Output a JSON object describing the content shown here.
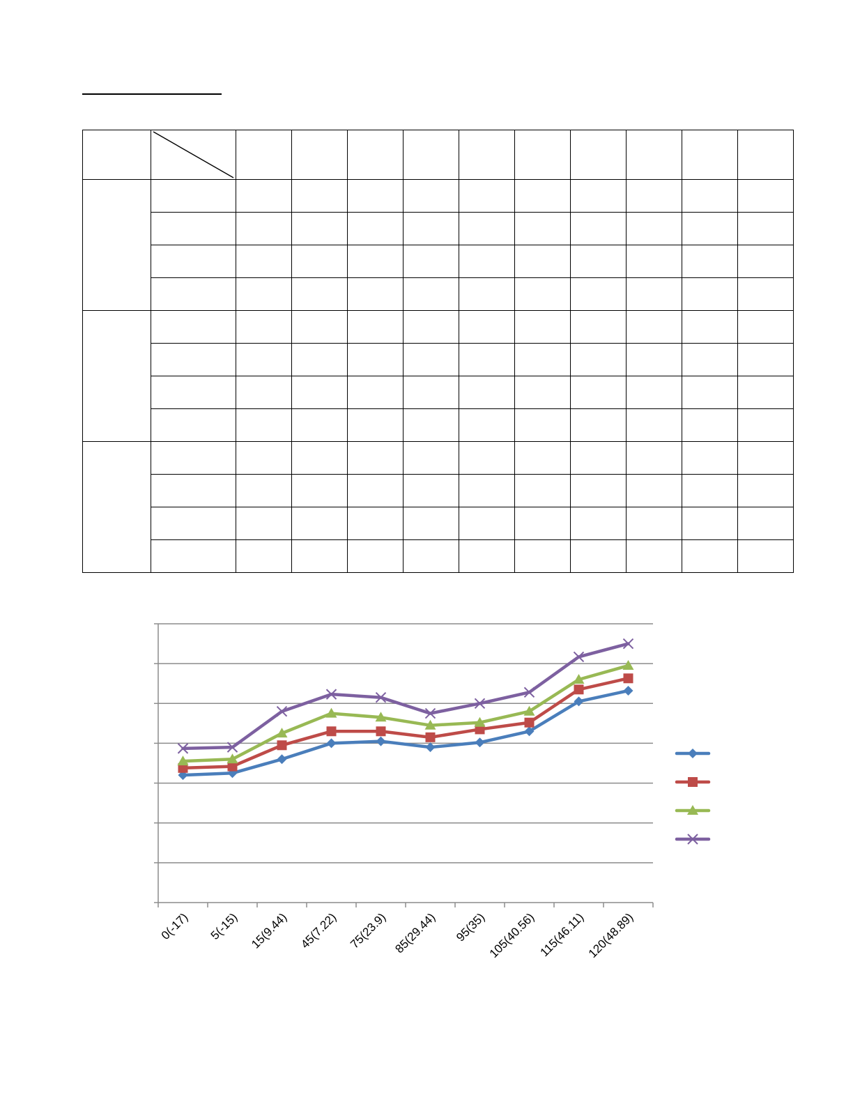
{
  "table": {
    "group_count": 3,
    "rows_per_group": 4,
    "value_columns": 10
  },
  "chart_data": {
    "type": "line",
    "categories": [
      "0(-17)",
      "5(-15)",
      "15(9.44)",
      "45(7.22)",
      "75(23.9)",
      "85(29.44)",
      "95(35)",
      "105(40.56)",
      "115(46.11)",
      "120(48.89)"
    ],
    "ylim": [
      0,
      7
    ],
    "grid": true,
    "legend_position": "right",
    "series": [
      {
        "color": "#4a7ebb",
        "marker": "diamond",
        "values": [
          3.2,
          3.25,
          3.6,
          4.0,
          4.05,
          3.9,
          4.02,
          4.3,
          5.05,
          5.32
        ]
      },
      {
        "color": "#be4b48",
        "marker": "square",
        "values": [
          3.38,
          3.42,
          3.95,
          4.3,
          4.3,
          4.15,
          4.35,
          4.52,
          5.35,
          5.63
        ]
      },
      {
        "color": "#98b954",
        "marker": "triangle",
        "values": [
          3.55,
          3.6,
          4.25,
          4.75,
          4.65,
          4.45,
          4.52,
          4.8,
          5.6,
          5.95
        ]
      },
      {
        "color": "#7d60a0",
        "marker": "x",
        "values": [
          3.87,
          3.9,
          4.8,
          5.23,
          5.15,
          4.75,
          5.0,
          5.28,
          6.17,
          6.5
        ]
      }
    ]
  }
}
